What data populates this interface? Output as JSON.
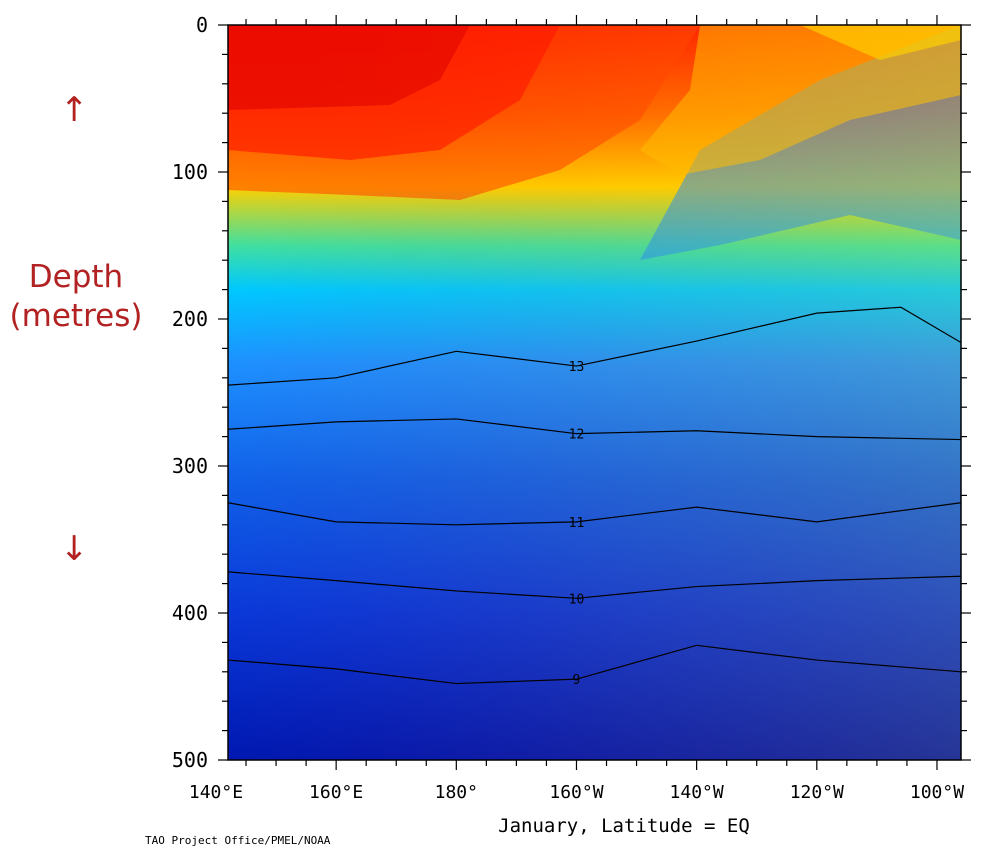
{
  "annotations": {
    "arrow_up": "↑",
    "arrow_down": "↓",
    "depth_line1": "Depth",
    "depth_line2": "(metres)",
    "credit": "TAO Project Office/PMEL/NOAA",
    "xlabel": "January, Latitude = EQ"
  },
  "colors": {
    "text_red": "#b22222",
    "warm": "#ff0000",
    "cold": "#0000a0"
  },
  "chart_data": {
    "type": "heatmap",
    "title": "",
    "xlabel": "January, Latitude = EQ",
    "ylabel": "",
    "x_unit": "degrees longitude (east = positive, west = 360 - lon)",
    "xlim": [
      142,
      264
    ],
    "ylim": [
      500,
      0
    ],
    "x_ticks": [
      {
        "value": 140,
        "label": "140°E"
      },
      {
        "value": 160,
        "label": "160°E"
      },
      {
        "value": 180,
        "label": "180°"
      },
      {
        "value": 200,
        "label": "160°W"
      },
      {
        "value": 220,
        "label": "140°W"
      },
      {
        "value": 240,
        "label": "120°W"
      },
      {
        "value": 260,
        "label": "100°W"
      }
    ],
    "y_ticks": [
      0,
      100,
      200,
      300,
      400,
      500
    ],
    "contour_levels": [
      9,
      10,
      11,
      12,
      13,
      14,
      15,
      16,
      17,
      18,
      19,
      20,
      21,
      22,
      23,
      24,
      25,
      26,
      27,
      28,
      29
    ],
    "isotherms": [
      {
        "level": 13,
        "label": "13",
        "points": [
          [
            142,
            245
          ],
          [
            160,
            240
          ],
          [
            180,
            222
          ],
          [
            200,
            232
          ],
          [
            220,
            215
          ],
          [
            240,
            196
          ],
          [
            254,
            192
          ],
          [
            264,
            216
          ]
        ]
      },
      {
        "level": 12,
        "label": "12",
        "points": [
          [
            142,
            275
          ],
          [
            160,
            270
          ],
          [
            180,
            268
          ],
          [
            200,
            278
          ],
          [
            220,
            276
          ],
          [
            240,
            280
          ],
          [
            264,
            282
          ]
        ]
      },
      {
        "level": 11,
        "label": "11",
        "points": [
          [
            142,
            325
          ],
          [
            160,
            338
          ],
          [
            180,
            340
          ],
          [
            200,
            338
          ],
          [
            220,
            328
          ],
          [
            240,
            338
          ],
          [
            264,
            325
          ]
        ]
      },
      {
        "level": 10,
        "label": "10",
        "points": [
          [
            142,
            372
          ],
          [
            160,
            378
          ],
          [
            180,
            385
          ],
          [
            200,
            390
          ],
          [
            220,
            382
          ],
          [
            240,
            378
          ],
          [
            264,
            375
          ]
        ]
      },
      {
        "level": 9,
        "label": "9",
        "points": [
          [
            142,
            432
          ],
          [
            160,
            438
          ],
          [
            180,
            448
          ],
          [
            200,
            445
          ],
          [
            220,
            422
          ],
          [
            240,
            432
          ],
          [
            264,
            440
          ]
        ]
      }
    ]
  }
}
